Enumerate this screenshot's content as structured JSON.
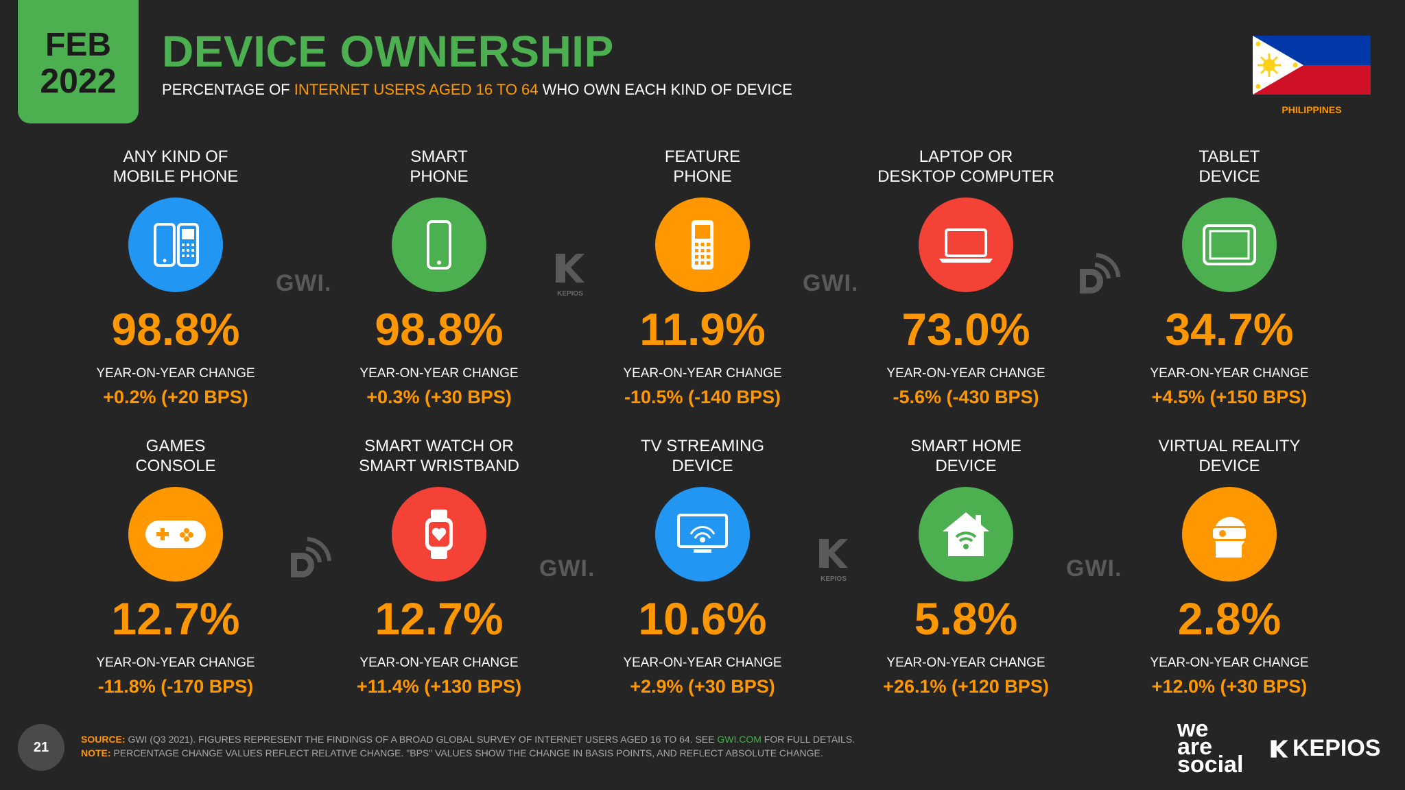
{
  "header": {
    "date_month": "FEB",
    "date_year": "2022",
    "title": "DEVICE OWNERSHIP",
    "subtitle_before": "PERCENTAGE OF ",
    "subtitle_highlight": "INTERNET USERS AGED 16 TO 64",
    "subtitle_after": " WHO OWN EACH KIND OF DEVICE",
    "country": "PHILIPPINES"
  },
  "cards": [
    {
      "label_line1": "ANY KIND OF",
      "label_line2": "MOBILE PHONE",
      "value": "98.8%",
      "yoy_label": "YEAR-ON-YEAR CHANGE",
      "yoy_value": "+0.2% (+20 BPS)",
      "icon": "mobile-phones-icon",
      "color": "#2196f3"
    },
    {
      "label_line1": "SMART",
      "label_line2": "PHONE",
      "value": "98.8%",
      "yoy_label": "YEAR-ON-YEAR CHANGE",
      "yoy_value": "+0.3% (+30 BPS)",
      "icon": "smartphone-icon",
      "color": "#4caf50"
    },
    {
      "label_line1": "FEATURE",
      "label_line2": "PHONE",
      "value": "11.9%",
      "yoy_label": "YEAR-ON-YEAR CHANGE",
      "yoy_value": "-10.5% (-140 BPS)",
      "icon": "feature-phone-icon",
      "color": "#ff9800"
    },
    {
      "label_line1": "LAPTOP OR",
      "label_line2": "DESKTOP COMPUTER",
      "value": "73.0%",
      "yoy_label": "YEAR-ON-YEAR CHANGE",
      "yoy_value": "-5.6% (-430 BPS)",
      "icon": "laptop-icon",
      "color": "#f44336"
    },
    {
      "label_line1": "TABLET",
      "label_line2": "DEVICE",
      "value": "34.7%",
      "yoy_label": "YEAR-ON-YEAR CHANGE",
      "yoy_value": "+4.5% (+150 BPS)",
      "icon": "tablet-icon",
      "color": "#4caf50"
    },
    {
      "label_line1": "GAMES",
      "label_line2": "CONSOLE",
      "value": "12.7%",
      "yoy_label": "YEAR-ON-YEAR CHANGE",
      "yoy_value": "-11.8% (-170 BPS)",
      "icon": "gamepad-icon",
      "color": "#ff9800"
    },
    {
      "label_line1": "SMART WATCH OR",
      "label_line2": "SMART WRISTBAND",
      "value": "12.7%",
      "yoy_label": "YEAR-ON-YEAR CHANGE",
      "yoy_value": "+11.4% (+130 BPS)",
      "icon": "smartwatch-icon",
      "color": "#f44336"
    },
    {
      "label_line1": "TV STREAMING",
      "label_line2": "DEVICE",
      "value": "10.6%",
      "yoy_label": "YEAR-ON-YEAR CHANGE",
      "yoy_value": "+2.9% (+30 BPS)",
      "icon": "tv-streaming-icon",
      "color": "#2196f3"
    },
    {
      "label_line1": "SMART HOME",
      "label_line2": "DEVICE",
      "value": "5.8%",
      "yoy_label": "YEAR-ON-YEAR CHANGE",
      "yoy_value": "+26.1% (+120 BPS)",
      "icon": "smart-home-icon",
      "color": "#4caf50"
    },
    {
      "label_line1": "VIRTUAL REALITY",
      "label_line2": "DEVICE",
      "value": "2.8%",
      "yoy_label": "YEAR-ON-YEAR CHANGE",
      "yoy_value": "+12.0% (+30 BPS)",
      "icon": "vr-headset-icon",
      "color": "#ff9800"
    }
  ],
  "watermarks": {
    "gwi": "GWI.",
    "kepios_small": "KEPIOS"
  },
  "footer": {
    "page_number": "21",
    "source_key": "SOURCE:",
    "source_text": " GWI (Q3 2021). FIGURES REPRESENT THE FINDINGS OF A BROAD GLOBAL SURVEY OF INTERNET USERS AGED 16 TO 64. SEE ",
    "source_link": "GWI.COM",
    "source_after": " FOR FULL DETAILS.",
    "note_key": "NOTE:",
    "note_text": " PERCENTAGE CHANGE VALUES REFLECT RELATIVE CHANGE. \"BPS\" VALUES SHOW THE CHANGE IN BASIS POINTS, AND REFLECT ABSOLUTE CHANGE.",
    "was_line1": "we",
    "was_line2": "are",
    "was_line3": "social",
    "kepios_logo": "KEPIOS"
  },
  "colors": {
    "background": "#252525",
    "green": "#4caf50",
    "orange": "#ff9800",
    "blue": "#2196f3",
    "red": "#f44336"
  }
}
